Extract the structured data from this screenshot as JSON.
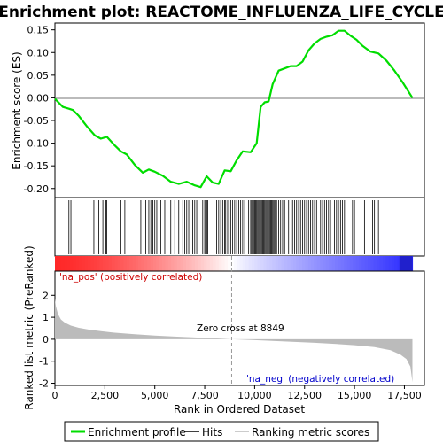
{
  "chart_data": [
    {
      "type": "line",
      "title": "Enrichment plot: REACTOME_INFLUENZA_LIFE_CYCLE",
      "ylabel": "Enrichment score (ES)",
      "ylim": [
        -0.22,
        0.165
      ],
      "yticks": [
        -0.2,
        -0.15,
        -0.1,
        -0.05,
        0.0,
        0.05,
        0.1,
        0.15
      ],
      "ytick_labels": [
        "-0.20",
        "-0.15",
        "-0.10",
        "-0.05",
        "0.00",
        "0.05",
        "0.10",
        "0.15"
      ],
      "grid": false,
      "series": [
        {
          "name": "Enrichment profile",
          "color": "#00dd00",
          "x": [
            0,
            400,
            700,
            900,
            1200,
            1600,
            2000,
            2300,
            2600,
            3000,
            3300,
            3600,
            4000,
            4400,
            4700,
            5000,
            5400,
            5800,
            6200,
            6600,
            7000,
            7300,
            7600,
            7900,
            8200,
            8500,
            8800,
            9100,
            9400,
            9800,
            10100,
            10300,
            10500,
            10700,
            10900,
            11200,
            11500,
            11800,
            12100,
            12400,
            12700,
            13000,
            13300,
            13600,
            13900,
            14200,
            14500,
            14800,
            15100,
            15400,
            15800,
            16200,
            16600,
            17000,
            17400,
            17900
          ],
          "y": [
            -0.002,
            -0.02,
            -0.024,
            -0.027,
            -0.04,
            -0.063,
            -0.083,
            -0.09,
            -0.086,
            -0.105,
            -0.118,
            -0.125,
            -0.148,
            -0.165,
            -0.158,
            -0.163,
            -0.172,
            -0.185,
            -0.19,
            -0.185,
            -0.193,
            -0.197,
            -0.173,
            -0.187,
            -0.19,
            -0.16,
            -0.162,
            -0.138,
            -0.118,
            -0.12,
            -0.1,
            -0.02,
            -0.01,
            -0.008,
            0.03,
            0.06,
            0.065,
            0.07,
            0.07,
            0.08,
            0.105,
            0.12,
            0.13,
            0.135,
            0.138,
            0.148,
            0.148,
            0.137,
            0.128,
            0.115,
            0.102,
            0.098,
            0.082,
            0.06,
            0.035,
            0.0
          ]
        }
      ]
    },
    {
      "type": "line",
      "xlabel": "Rank in Ordered Dataset",
      "ylabel": "Ranked list metric (PreRanked)",
      "xlim": [
        0,
        18500
      ],
      "xticks": [
        0,
        2500,
        5000,
        7500,
        10000,
        12500,
        15000,
        17500
      ],
      "xtick_labels": [
        "0",
        "2,500",
        "5,000",
        "7,500",
        "10,000",
        "12,500",
        "15,000",
        "17,500"
      ],
      "ylim": [
        -2.1,
        3.1
      ],
      "yticks": [
        -2,
        -1,
        0,
        1,
        2
      ],
      "ytick_labels": [
        "-2",
        "-1",
        "0",
        "1",
        "2"
      ],
      "zero_cross": 8849,
      "annotations": [
        "'na_pos' (positively correlated)",
        "Zero cross at 8849",
        "'na_neg' (negatively correlated)"
      ],
      "series": [
        {
          "name": "Ranking metric scores",
          "color": "#bbbbbb",
          "x": [
            0,
            50,
            150,
            300,
            500,
            800,
            1200,
            1700,
            2300,
            3000,
            4000,
            5000,
            6000,
            7000,
            8000,
            8849,
            10000,
            11000,
            12000,
            13000,
            14000,
            15000,
            16000,
            16800,
            17300,
            17600,
            17800,
            17900
          ],
          "y": [
            1.85,
            1.5,
            1.15,
            0.9,
            0.75,
            0.62,
            0.52,
            0.44,
            0.37,
            0.3,
            0.23,
            0.17,
            0.12,
            0.08,
            0.04,
            0.0,
            -0.04,
            -0.08,
            -0.12,
            -0.16,
            -0.21,
            -0.27,
            -0.36,
            -0.5,
            -0.7,
            -0.9,
            -1.25,
            -1.95
          ]
        }
      ]
    }
  ],
  "hits": [
    700,
    800,
    1950,
    2200,
    2400,
    2550,
    2600,
    3300,
    3500,
    4300,
    4550,
    4700,
    4800,
    4900,
    5000,
    5100,
    5300,
    5500,
    5800,
    6000,
    6200,
    6400,
    6500,
    6600,
    6700,
    6900,
    7000,
    7100,
    7400,
    7500,
    7550,
    7600,
    7650,
    8100,
    8200,
    8300,
    8400,
    8500,
    8550,
    8650,
    8800,
    8900,
    9000,
    9100,
    9200,
    9300,
    9400,
    9500,
    9700,
    9800,
    9850,
    9900,
    9950,
    10000,
    10050,
    10100,
    10150,
    10200,
    10250,
    10300,
    10350,
    10400,
    10450,
    10500,
    10550,
    10600,
    10650,
    10700,
    10750,
    10800,
    10850,
    10900,
    10950,
    11000,
    11050,
    11100,
    11200,
    11300,
    11400,
    11500,
    11700,
    11900,
    12000,
    12100,
    12200,
    12300,
    12400,
    12500,
    12600,
    12700,
    12800,
    12900,
    13000,
    13100,
    13300,
    13400,
    13500,
    13600,
    13700,
    13800,
    14000,
    14100,
    14200,
    14300,
    14400,
    14500,
    14900,
    15000,
    15500,
    15900,
    16000,
    16200
  ],
  "legend": {
    "items": [
      {
        "label": "Enrichment profile",
        "color": "#00dd00"
      },
      {
        "label": "Hits",
        "color": "#000000"
      },
      {
        "label": "Ranking metric scores",
        "color": "#bbbbbb"
      }
    ]
  }
}
